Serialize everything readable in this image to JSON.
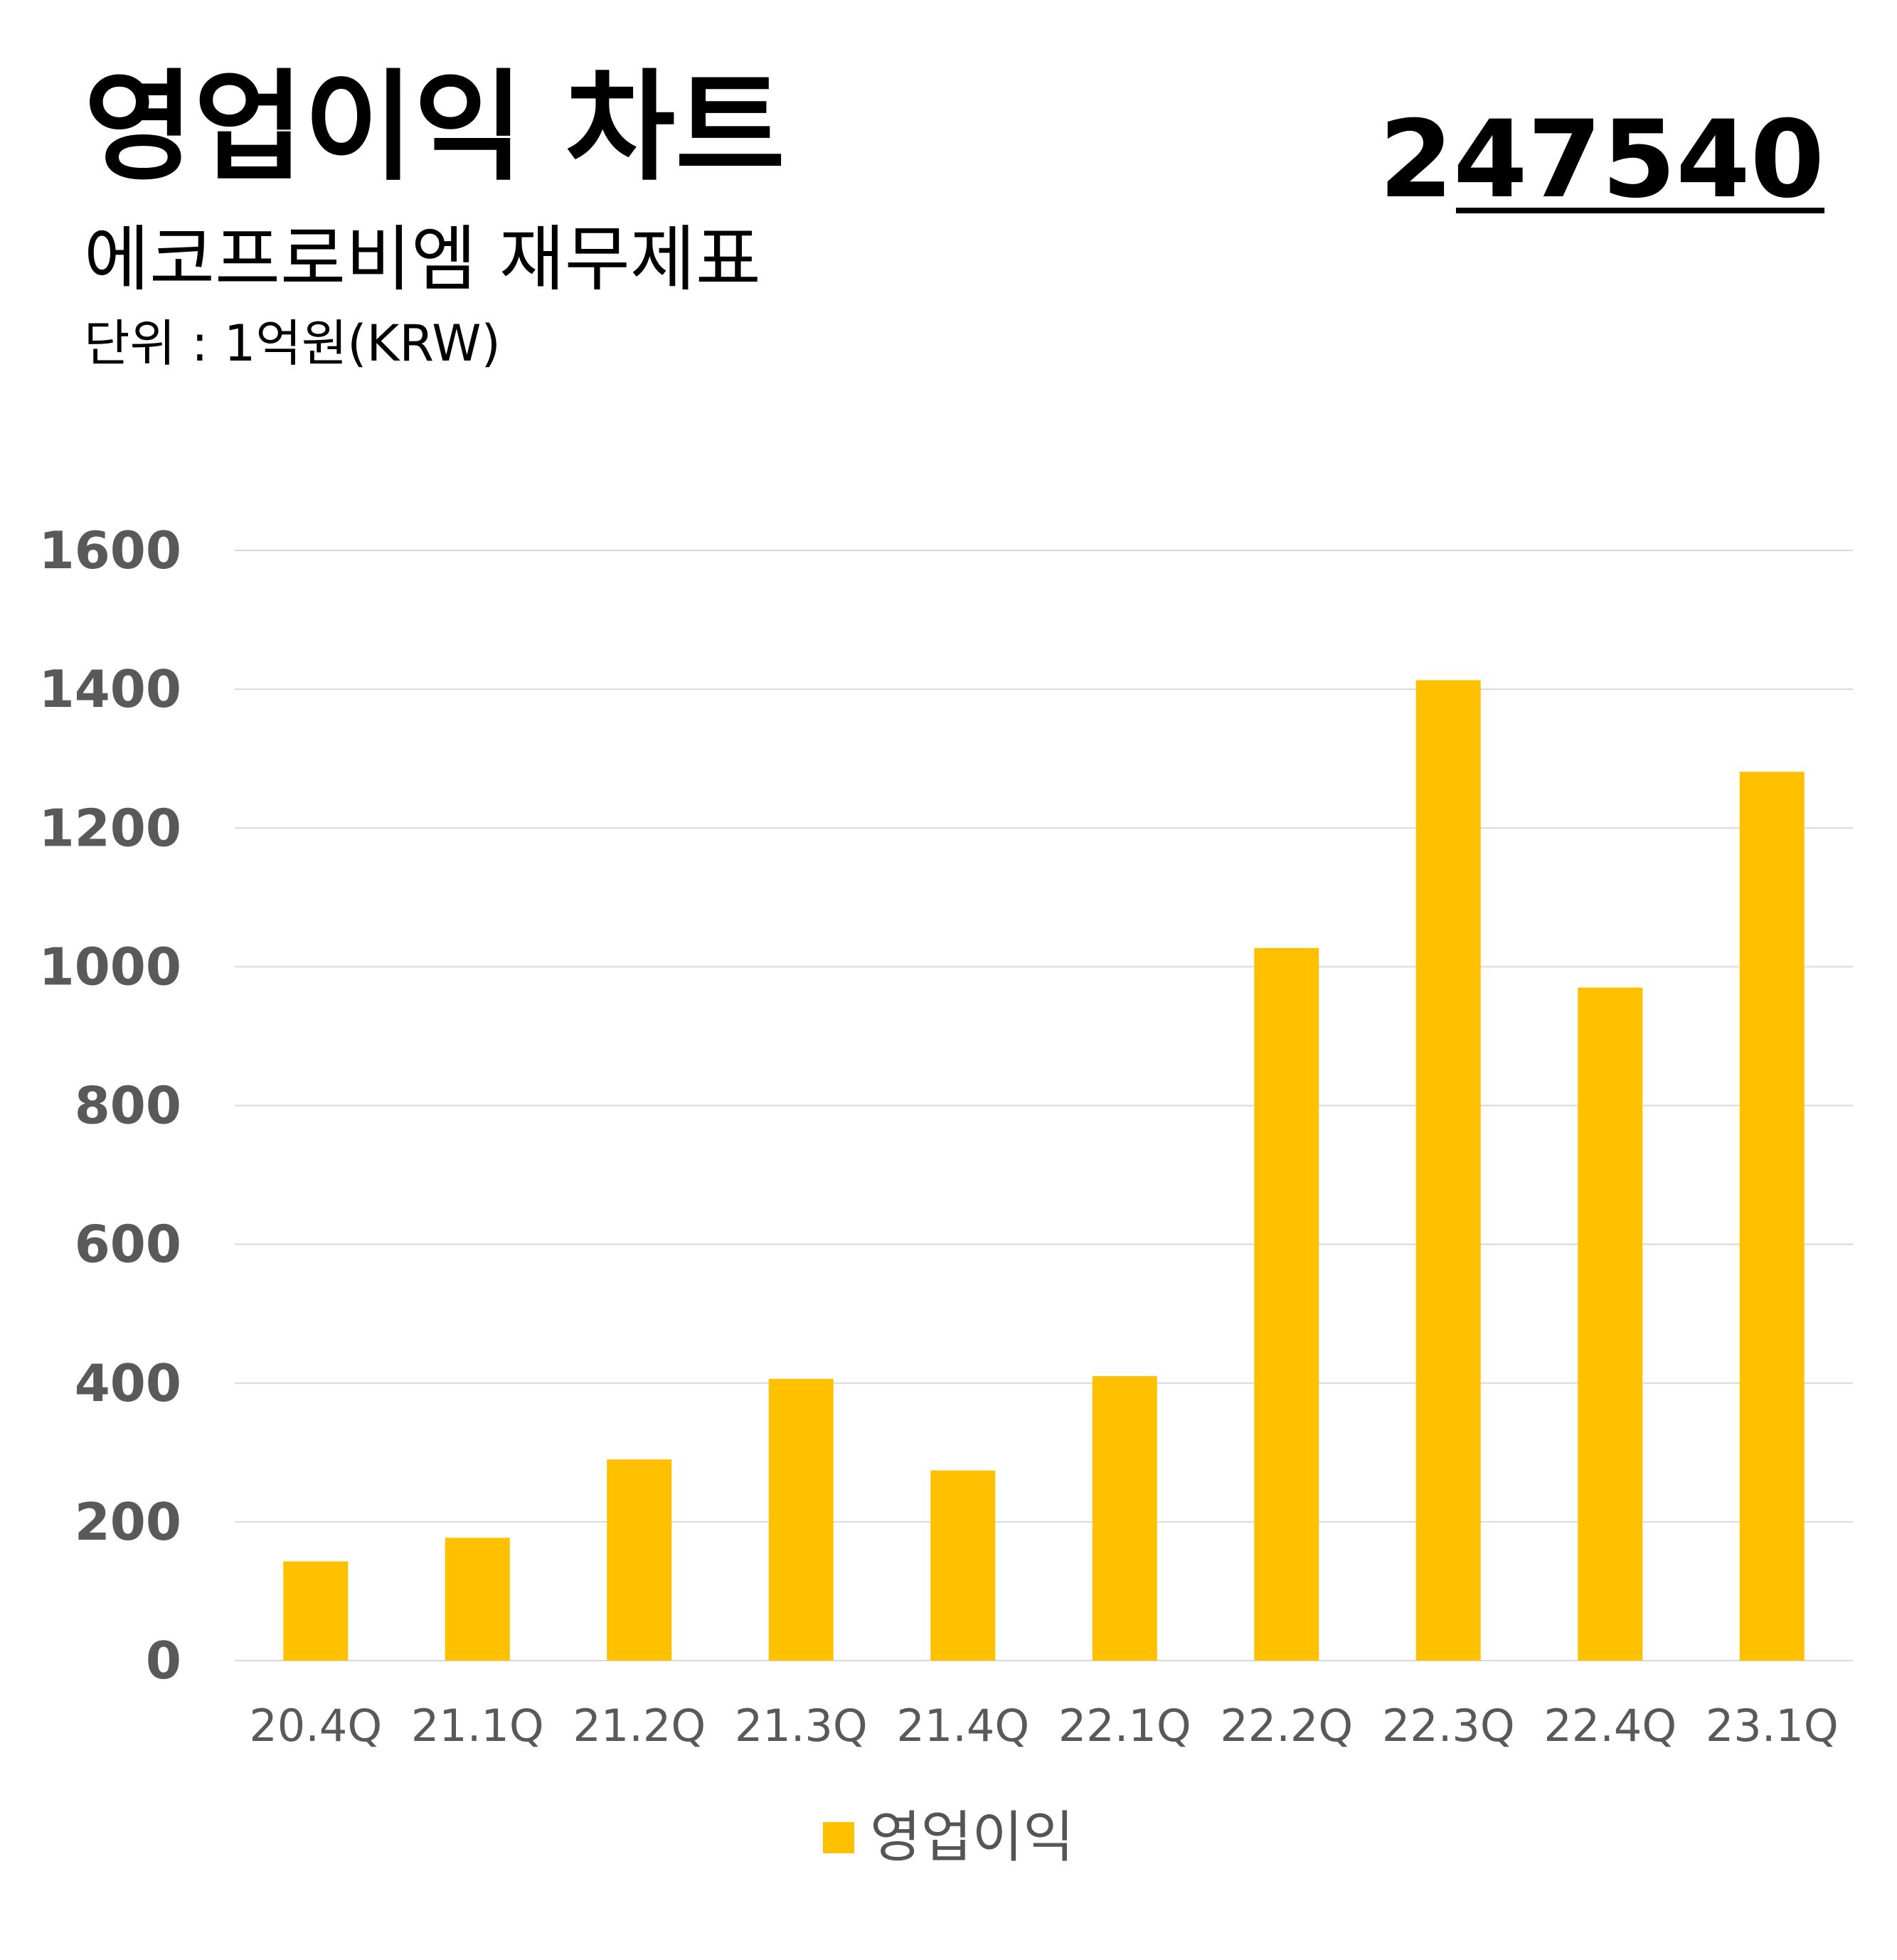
{
  "header": {
    "title": "영업이익 차트",
    "stock_code": "247540",
    "subtitle": "에코프로비엠 재무제표",
    "unit": "단위 : 1억원(KRW)"
  },
  "colors": {
    "bar": "#FFC000",
    "grid": "#D9D9D9",
    "axis_text": "#595959"
  },
  "chart_data": {
    "type": "bar",
    "categories": [
      "20.4Q",
      "21.1Q",
      "21.2Q",
      "21.3Q",
      "21.4Q",
      "22.1Q",
      "22.2Q",
      "22.3Q",
      "22.4Q",
      "23.1Q"
    ],
    "series": [
      {
        "name": "영업이익",
        "values": [
          143,
          177,
          290,
          406,
          274,
          410,
          1027,
          1413,
          970,
          1281
        ]
      }
    ],
    "ylim": [
      0,
      1600
    ],
    "yticks": [
      0,
      200,
      400,
      600,
      800,
      1000,
      1200,
      1400,
      1600
    ],
    "grid": true,
    "legend": "bottom"
  }
}
